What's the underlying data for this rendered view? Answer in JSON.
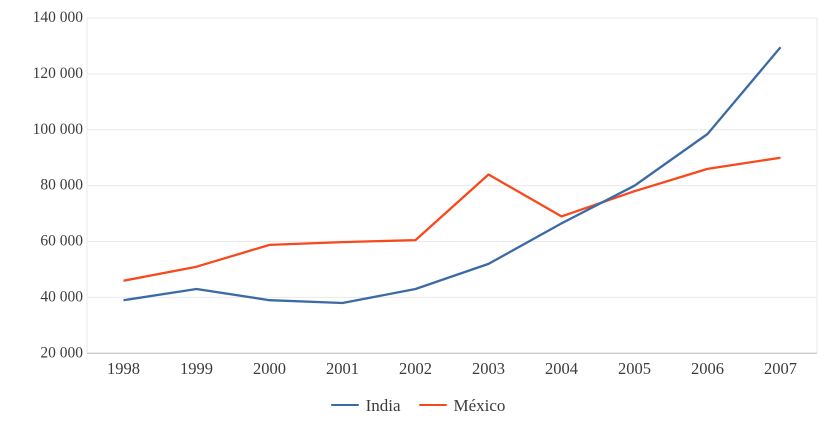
{
  "chart_data": {
    "type": "line",
    "title": "",
    "xlabel": "",
    "ylabel": "",
    "grid": true,
    "legend_position": "bottom-center",
    "categories": [
      "1998",
      "1999",
      "2000",
      "2001",
      "2002",
      "2003",
      "2004",
      "2005",
      "2006",
      "2007"
    ],
    "series": [
      {
        "name": "India",
        "color": "#3b6aa5",
        "values": [
          39000,
          43000,
          39000,
          38000,
          43000,
          52000,
          66500,
          80000,
          98500,
          129500
        ]
      },
      {
        "name": "México",
        "color": "#f8491c",
        "values": [
          46000,
          51000,
          58800,
          59800,
          60500,
          84000,
          69000,
          78000,
          86000,
          90000
        ]
      }
    ],
    "ylim": [
      20000,
      140000
    ],
    "y_ticks": [
      {
        "value": 20000,
        "label": "20 000"
      },
      {
        "value": 40000,
        "label": "40 000"
      },
      {
        "value": 60000,
        "label": "60 000"
      },
      {
        "value": 80000,
        "label": "80 000"
      },
      {
        "value": 100000,
        "label": "100 000"
      },
      {
        "value": 120000,
        "label": "120 000"
      },
      {
        "value": 140000,
        "label": "140 000"
      }
    ]
  },
  "colors": {
    "gridline": "#e9e9e9",
    "axis_line": "#cbcbcb",
    "plot_border": "#e9e9e9",
    "tick_text": "#3c3c3c",
    "background": "#ffffff"
  }
}
